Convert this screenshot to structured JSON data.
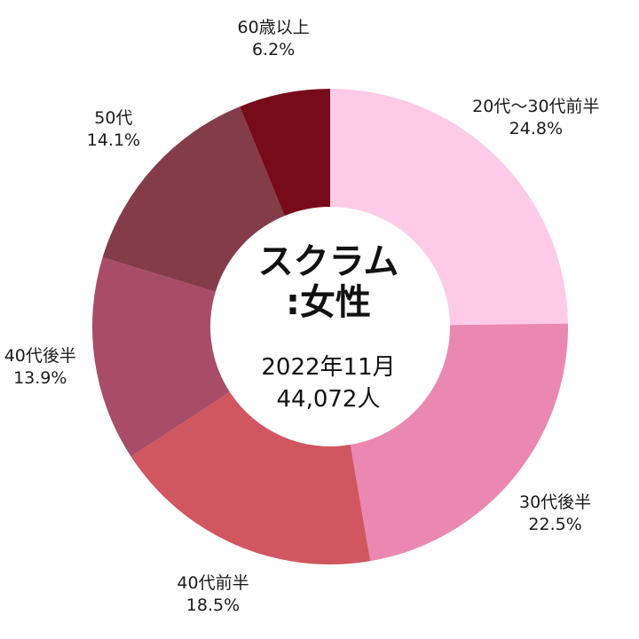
{
  "chart_data": {
    "type": "pie",
    "style": "donut",
    "title": "スクラム\n:女性",
    "subtitle": "2022年11月\n44,072人",
    "slices": [
      {
        "label": "20代～30代前半",
        "value": 24.8,
        "display": "24.8%",
        "color": "#fdcbe7"
      },
      {
        "label": "30代後半",
        "value": 22.5,
        "display": "22.5%",
        "color": "#eb88b2"
      },
      {
        "label": "40代前半",
        "value": 18.5,
        "display": "18.5%",
        "color": "#d05660"
      },
      {
        "label": "40代後半",
        "value": 13.9,
        "display": "13.9%",
        "color": "#a84c67"
      },
      {
        "label": "50代",
        "value": 14.1,
        "display": "14.1%",
        "color": "#853c49"
      },
      {
        "label": "60歳以上",
        "value": 6.2,
        "display": "6.2%",
        "color": "#780b19"
      }
    ]
  }
}
